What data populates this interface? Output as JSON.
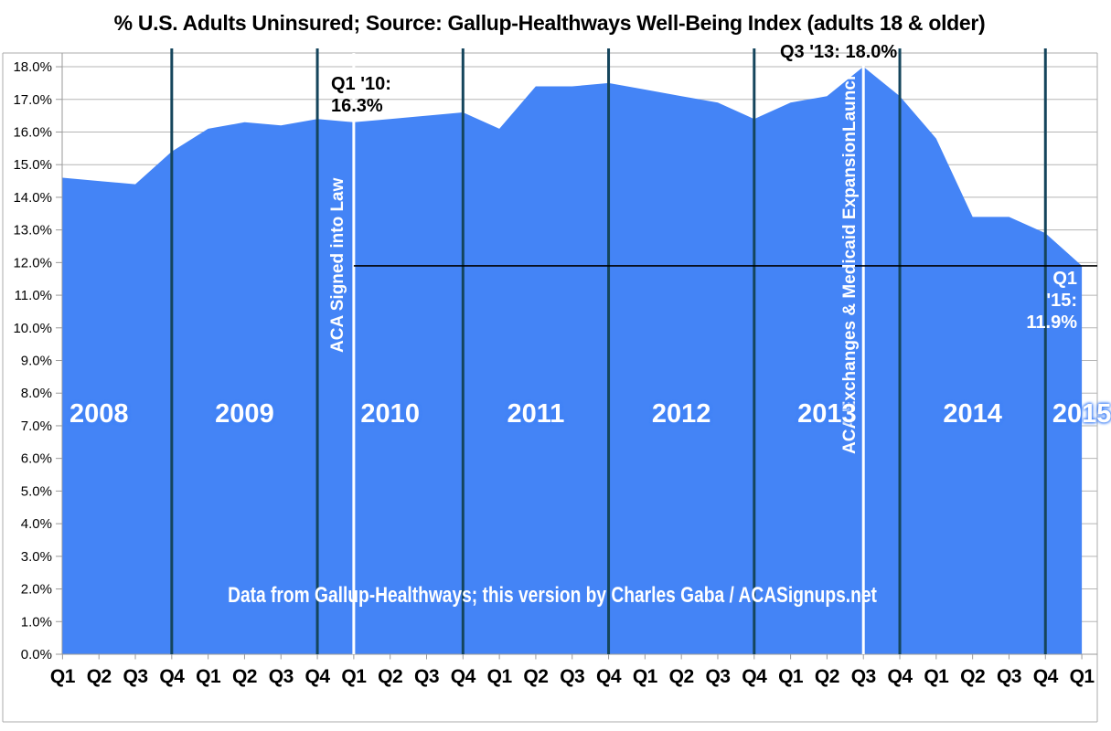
{
  "title": "% U.S. Adults Uninsured; Source: Gallup-Healthways Well-Being Index (adults 18 & older)",
  "credit": "Data from Gallup-Healthways; this version by Charles Gaba / ACASignups.net",
  "colors": {
    "area_fill": "#4484F6",
    "year_divider": "#15455C",
    "event_line": "#FFFFFF",
    "gridline": "#B5B5B5",
    "axis": "#9A9A9A",
    "frame": "#ABABAB",
    "reference_line": "#000000",
    "axis_label": "#000000"
  },
  "chart_data": {
    "type": "area",
    "series_name": "% of U.S. adults uninsured",
    "categories": [
      "Q1 2008",
      "Q2 2008",
      "Q3 2008",
      "Q4 2008",
      "Q1 2009",
      "Q2 2009",
      "Q3 2009",
      "Q4 2009",
      "Q1 2010",
      "Q2 2010",
      "Q3 2010",
      "Q4 2010",
      "Q1 2011",
      "Q2 2011",
      "Q3 2011",
      "Q4 2011",
      "Q1 2012",
      "Q2 2012",
      "Q3 2012",
      "Q4 2012",
      "Q1 2013",
      "Q2 2013",
      "Q3 2013",
      "Q4 2013",
      "Q1 2014",
      "Q2 2014",
      "Q3 2014",
      "Q4 2014",
      "Q1 2015"
    ],
    "x_tick_labels": [
      "Q1",
      "Q2",
      "Q3",
      "Q4",
      "Q1",
      "Q2",
      "Q3",
      "Q4",
      "Q1",
      "Q2",
      "Q3",
      "Q4",
      "Q1",
      "Q2",
      "Q3",
      "Q4",
      "Q1",
      "Q2",
      "Q3",
      "Q4",
      "Q1",
      "Q2",
      "Q3",
      "Q4",
      "Q1",
      "Q2",
      "Q3",
      "Q4",
      "Q1"
    ],
    "values": [
      14.6,
      14.5,
      14.4,
      15.4,
      16.1,
      16.3,
      16.2,
      16.4,
      16.3,
      16.4,
      16.5,
      16.6,
      16.1,
      17.4,
      17.4,
      17.5,
      17.3,
      17.1,
      16.9,
      16.4,
      16.9,
      17.1,
      18.0,
      17.1,
      15.8,
      13.4,
      13.4,
      12.9,
      11.9
    ],
    "ylim": [
      0,
      18
    ],
    "ytick_step": 1,
    "y_tick_labels": [
      "0.0%",
      "1.0%",
      "2.0%",
      "3.0%",
      "4.0%",
      "5.0%",
      "6.0%",
      "7.0%",
      "8.0%",
      "9.0%",
      "10.0%",
      "11.0%",
      "12.0%",
      "13.0%",
      "14.0%",
      "15.0%",
      "16.0%",
      "17.0%",
      "18.0%"
    ],
    "grid": true,
    "year_groups": [
      {
        "label": "2008",
        "start_index": 0,
        "end_index": 3,
        "label_index": 1
      },
      {
        "label": "2009",
        "start_index": 4,
        "end_index": 7,
        "label_index": 5
      },
      {
        "label": "2010",
        "start_index": 8,
        "end_index": 11,
        "label_index": 9
      },
      {
        "label": "2011",
        "start_index": 12,
        "end_index": 15,
        "label_index": 13
      },
      {
        "label": "2012",
        "start_index": 16,
        "end_index": 19,
        "label_index": 17
      },
      {
        "label": "2013",
        "start_index": 20,
        "end_index": 23,
        "label_index": 21
      },
      {
        "label": "2014",
        "start_index": 24,
        "end_index": 27,
        "label_index": 25
      },
      {
        "label": "2015",
        "start_index": 28,
        "end_index": 28,
        "label_index": 28
      }
    ],
    "year_divider_indices": [
      3,
      7,
      11,
      15,
      19,
      23,
      27
    ],
    "events": [
      {
        "index": 8,
        "category": "Q1 2010",
        "label": "ACA Signed into Law"
      },
      {
        "index": 22,
        "category": "Q3 2013",
        "label": "ACA Exchanges & Medicaid ExpansionLaunch"
      }
    ],
    "reference_line": {
      "value": 11.9,
      "start_index": 8
    },
    "annotations": [
      {
        "id": "q1-2010",
        "lines": [
          "Q1 '10:",
          "16.3%"
        ],
        "index": 8,
        "value": 16.3,
        "color": "dark",
        "align": "left",
        "x": 362,
        "y": 80
      },
      {
        "id": "q3-2013",
        "lines": [
          "Q3 '13: 18.0%"
        ],
        "index": 22,
        "value": 18.0,
        "color": "dark",
        "align": "left",
        "x": 853,
        "y": 45
      },
      {
        "id": "q1-2015",
        "lines": [
          "Q1 '15: 11.9%"
        ],
        "index": 28,
        "value": 11.9,
        "color": "light",
        "align": "right",
        "x": 1178,
        "y": 293
      }
    ]
  }
}
